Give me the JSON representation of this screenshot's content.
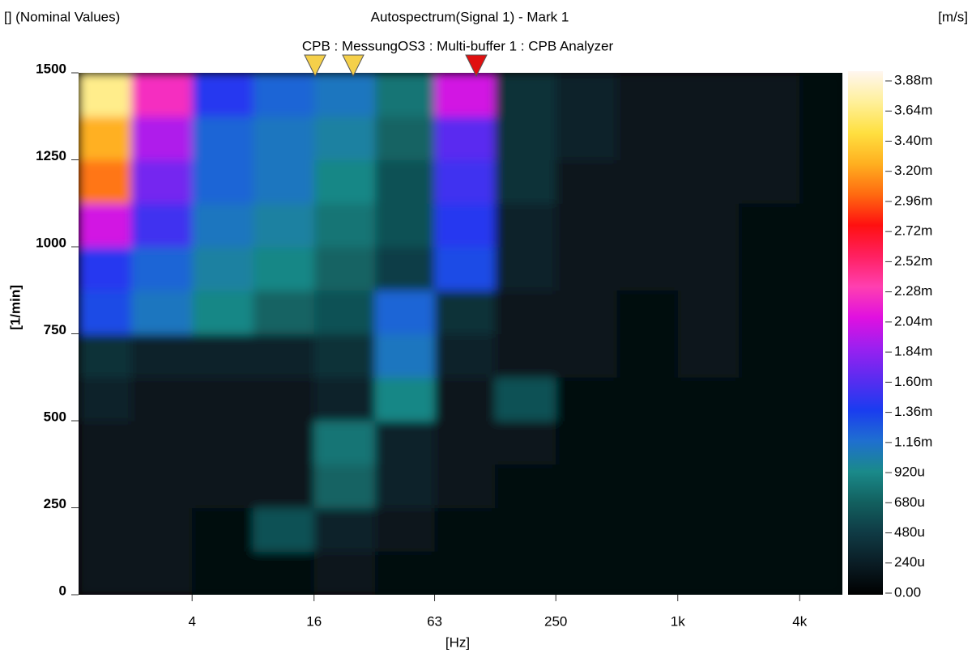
{
  "chart_data": {
    "type": "heatmap",
    "corner_label": "[] (Nominal Values)",
    "title": "Autospectrum(Signal 1) - Mark 1",
    "subtitle": "CPB : MessungOS3 : Multi-buffer 1 : CPB Analyzer",
    "x_label": "[Hz]",
    "y_label": "[1/min]",
    "colorbar_label": "[m/s]",
    "x_log": true,
    "xlim": [
      1.1,
      6500
    ],
    "xticks": [
      4,
      16,
      63,
      250,
      {
        "value": 1000,
        "label": "1k"
      },
      {
        "value": 4000,
        "label": "4k"
      }
    ],
    "ylim": [
      0,
      1500
    ],
    "yticks": [
      0,
      250,
      500,
      750,
      1000,
      1250,
      1500
    ],
    "xbins": [
      1.1,
      2,
      4,
      8,
      16,
      32,
      63,
      125,
      250,
      500,
      1000,
      2000,
      4000,
      6500
    ],
    "ybins": [
      0,
      125,
      250,
      375,
      500,
      625,
      750,
      875,
      1000,
      1125,
      1250,
      1375,
      1500
    ],
    "z": [
      [
        0.0002,
        0.0002,
        0.0001,
        0.0001,
        0.0002,
        0.0001,
        0.0001,
        0.0001,
        0.0001,
        0.0001,
        0.0001,
        0.0001,
        0.0001
      ],
      [
        0.0002,
        0.0002,
        0.0001,
        0.0006,
        0.0003,
        0.0002,
        0.0001,
        0.0001,
        0.0001,
        0.0001,
        0.0001,
        0.0001,
        0.0001
      ],
      [
        0.0002,
        0.0002,
        0.0002,
        0.0002,
        0.0007,
        0.0003,
        0.0002,
        0.0001,
        0.0001,
        0.0001,
        0.0001,
        0.0001,
        0.0001
      ],
      [
        0.0002,
        0.0002,
        0.0002,
        0.0002,
        0.0008,
        0.0003,
        0.0002,
        0.0002,
        0.0001,
        0.0001,
        0.0001,
        0.0001,
        0.0001
      ],
      [
        0.0003,
        0.0002,
        0.0002,
        0.0002,
        0.0003,
        0.0009,
        0.0002,
        0.0006,
        0.0001,
        0.0001,
        0.0001,
        0.0001,
        0.0001
      ],
      [
        0.0004,
        0.0003,
        0.0003,
        0.0003,
        0.0004,
        0.0011,
        0.0003,
        0.0002,
        0.0002,
        0.0001,
        0.0002,
        0.0001,
        0.0001
      ],
      [
        0.0013,
        0.0011,
        0.0009,
        0.0007,
        0.0006,
        0.0012,
        0.0004,
        0.0002,
        0.0002,
        0.0001,
        0.0002,
        0.0001,
        0.0001
      ],
      [
        0.0014,
        0.0012,
        0.001,
        0.0009,
        0.0007,
        0.0005,
        0.0013,
        0.0003,
        0.0002,
        0.0002,
        0.0002,
        0.0001,
        0.0001
      ],
      [
        0.002,
        0.0015,
        0.0011,
        0.001,
        0.0008,
        0.0006,
        0.0014,
        0.0003,
        0.0002,
        0.0002,
        0.0002,
        0.0001,
        0.0001
      ],
      [
        0.003,
        0.0017,
        0.0012,
        0.0011,
        0.0009,
        0.0006,
        0.0015,
        0.0004,
        0.0002,
        0.0002,
        0.0002,
        0.0002,
        0.0001
      ],
      [
        0.0032,
        0.0019,
        0.0012,
        0.0011,
        0.001,
        0.0007,
        0.0016,
        0.0004,
        0.0003,
        0.0002,
        0.0002,
        0.0002,
        0.0001
      ],
      [
        0.0036,
        0.0022,
        0.0014,
        0.0012,
        0.0011,
        0.0008,
        0.002,
        0.0004,
        0.0003,
        0.0002,
        0.0002,
        0.0002,
        0.0001
      ]
    ],
    "colorbar_ticks": [
      {
        "value": 0,
        "label": "0.00"
      },
      {
        "value": 0.00024,
        "label": "240u"
      },
      {
        "value": 0.00048,
        "label": "480u"
      },
      {
        "value": 0.00068,
        "label": "680u"
      },
      {
        "value": 0.00092,
        "label": "920u"
      },
      {
        "value": 0.00116,
        "label": "1.16m"
      },
      {
        "value": 0.00136,
        "label": "1.36m"
      },
      {
        "value": 0.0016,
        "label": "1.60m"
      },
      {
        "value": 0.00184,
        "label": "1.84m"
      },
      {
        "value": 0.00204,
        "label": "2.04m"
      },
      {
        "value": 0.00228,
        "label": "2.28m"
      },
      {
        "value": 0.00252,
        "label": "2.52m"
      },
      {
        "value": 0.00272,
        "label": "2.72m"
      },
      {
        "value": 0.00296,
        "label": "2.96m"
      },
      {
        "value": 0.0032,
        "label": "3.20m"
      },
      {
        "value": 0.0034,
        "label": "3.40m"
      },
      {
        "value": 0.00364,
        "label": "3.64m"
      },
      {
        "value": 0.00388,
        "label": "3.88m"
      }
    ],
    "colorscale": [
      "#000000",
      "#0a1c24",
      "#0f3a44",
      "#12605f",
      "#1a8a8a",
      "#1f6fd0",
      "#1a3cf0",
      "#5a2cf0",
      "#9a20f0",
      "#e010e0",
      "#ff3fb0",
      "#ff2060",
      "#ff1010",
      "#ff6a10",
      "#ffb020",
      "#ffe040",
      "#fff09a",
      "#fff6f0"
    ]
  }
}
